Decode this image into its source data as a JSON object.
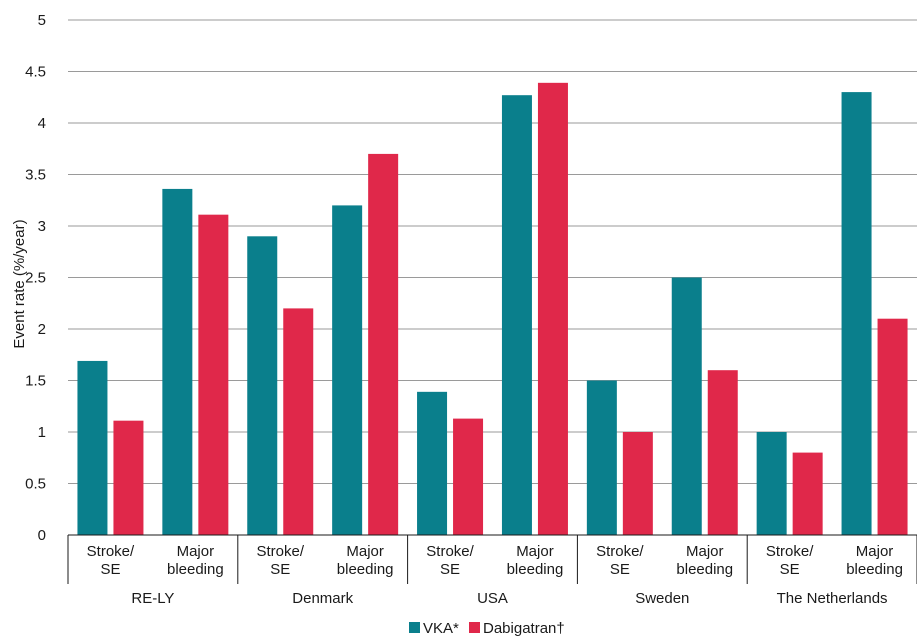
{
  "chart_data": {
    "type": "bar",
    "title": "",
    "ylabel": "Event rate (%/year)",
    "xlabel": "",
    "ylim": [
      0,
      5
    ],
    "yticks": [
      "0",
      "0.5",
      "1",
      "1.5",
      "2",
      "2.5",
      "3",
      "3.5",
      "4",
      "4.5",
      "5"
    ],
    "grid": true,
    "legend_position": "bottom-center",
    "groups": [
      {
        "label": "RE-LY",
        "categories": [
          [
            "Stroke/",
            "SE"
          ],
          [
            "Major",
            "bleeding"
          ]
        ]
      },
      {
        "label": "Denmark",
        "categories": [
          [
            "Stroke/",
            "SE"
          ],
          [
            "Major",
            "bleeding"
          ]
        ]
      },
      {
        "label": "USA",
        "categories": [
          [
            "Stroke/",
            "SE"
          ],
          [
            "Major",
            "bleeding"
          ]
        ]
      },
      {
        "label": "Sweden",
        "categories": [
          [
            "Stroke/",
            "SE"
          ],
          [
            "Major",
            "bleeding"
          ]
        ]
      },
      {
        "label": "The Netherlands",
        "categories": [
          [
            "Stroke/",
            "SE"
          ],
          [
            "Major",
            "bleeding"
          ]
        ]
      }
    ],
    "series": [
      {
        "name": "VKA*",
        "color": "#0a7f8c",
        "values": [
          1.69,
          3.36,
          2.9,
          3.2,
          1.39,
          4.27,
          1.5,
          2.5,
          1.0,
          4.3
        ]
      },
      {
        "name": "Dabigatran†",
        "color": "#e0284a",
        "values": [
          1.11,
          3.11,
          2.2,
          3.7,
          1.13,
          4.39,
          1.0,
          1.6,
          0.8,
          2.1
        ]
      }
    ]
  }
}
